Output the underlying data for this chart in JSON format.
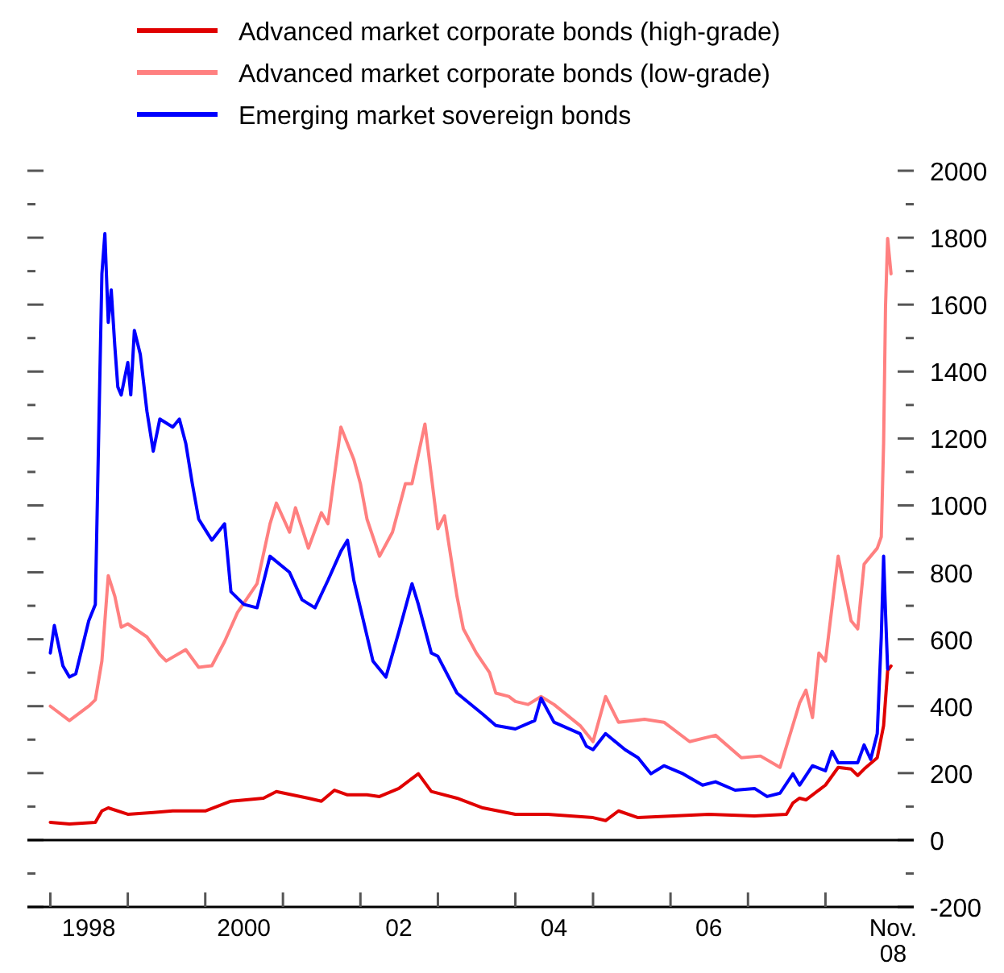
{
  "chart_data": {
    "type": "line",
    "legend": "top",
    "grid": false,
    "line_style": "solid",
    "marker": "none",
    "xlim": [
      "1997-09-15",
      "2009-02-20"
    ],
    "xticks": [
      {
        "value": "1998-01-01",
        "label": null
      },
      {
        "value": "1999-01-01",
        "label": null
      },
      {
        "value": "2000-01-01",
        "label": null
      },
      {
        "value": "2001-01-01",
        "label": null
      },
      {
        "value": "2002-01-01",
        "label": null
      },
      {
        "value": "2003-01-01",
        "label": null
      },
      {
        "value": "2004-01-01",
        "label": null
      },
      {
        "value": "2005-01-01",
        "label": null
      },
      {
        "value": "2006-01-01",
        "label": null
      },
      {
        "value": "2007-01-01",
        "label": null
      },
      {
        "value": "2008-01-01",
        "label": null
      },
      {
        "value": "1998-07-01",
        "label": "1998"
      },
      {
        "value": "2000-07-01",
        "label": "2000"
      },
      {
        "value": "2002-07-01",
        "label": "02"
      },
      {
        "value": "2004-07-01",
        "label": "04"
      },
      {
        "value": "2006-07-01",
        "label": "06"
      },
      {
        "value": "2008-11-15",
        "label": "Nov. 08"
      }
    ],
    "ylim": [
      -200,
      2000
    ],
    "yticks": [
      -200,
      {
        "value": -100,
        "label": null
      },
      0,
      {
        "value": 100,
        "label": null
      },
      200,
      {
        "value": 300,
        "label": null
      },
      400,
      {
        "value": 500,
        "label": null
      },
      600,
      {
        "value": 700,
        "label": null
      },
      800,
      {
        "value": 900,
        "label": null
      },
      1000,
      {
        "value": 1100,
        "label": null
      },
      1200,
      {
        "value": 1300,
        "label": null
      },
      1400,
      {
        "value": 1500,
        "label": null
      },
      1600,
      {
        "value": 1700,
        "label": null
      },
      1800,
      {
        "value": 1900,
        "label": null
      },
      2000
    ],
    "ref_lines": [
      {
        "axis": "y",
        "value": 0,
        "color": "#000000"
      }
    ],
    "series": [
      {
        "name": "Advanced market corporate bonds (high-grade)",
        "color": "#e00000",
        "x": [
          "1998-01",
          "1998-04",
          "1998-08",
          "1998-09",
          "1998-10",
          "1999-01",
          "1999-05",
          "1999-08",
          "2000-01",
          "2000-05",
          "2000-10",
          "2000-12",
          "2001-05",
          "2001-07",
          "2001-09",
          "2001-11",
          "2002-02",
          "2002-04",
          "2002-07",
          "2002-10",
          "2002-12",
          "2003-04",
          "2003-08",
          "2004-01",
          "2004-06",
          "2005-01",
          "2005-03",
          "2005-05",
          "2005-08",
          "2006-07",
          "2007-02",
          "2007-07",
          "2007-08",
          "2007-09",
          "2007-10",
          "2008-01",
          "2008-03",
          "2008-05",
          "2008-06",
          "2008-07",
          "2008-09",
          "2008-10-01",
          "2008-10-20",
          "2008-11-05"
        ],
        "values": [
          53,
          48,
          53,
          87,
          96,
          77,
          82,
          87,
          87,
          116,
          125,
          145,
          125,
          116,
          149,
          135,
          135,
          130,
          154,
          198,
          145,
          125,
          96,
          77,
          77,
          67,
          58,
          87,
          67,
          77,
          72,
          77,
          111,
          125,
          120,
          164,
          217,
          212,
          193,
          212,
          246,
          342,
          506,
          520
        ]
      },
      {
        "name": "Advanced market corporate bonds (low-grade)",
        "color": "#ff8080",
        "x": [
          "1998-01",
          "1998-04",
          "1998-07",
          "1998-08",
          "1998-09",
          "1998-10",
          "1998-11",
          "1998-12",
          "1999-01",
          "1999-04",
          "1999-06",
          "1999-07",
          "1999-10",
          "1999-12",
          "2000-02",
          "2000-04",
          "2000-06",
          "2000-09",
          "2000-11",
          "2000-12",
          "2001-02",
          "2001-03",
          "2001-05",
          "2001-07",
          "2001-08",
          "2001-10",
          "2001-12",
          "2002-01",
          "2002-02",
          "2002-04",
          "2002-06",
          "2002-08",
          "2002-09",
          "2002-11",
          "2002-12",
          "2003-01",
          "2003-02",
          "2003-04",
          "2003-05",
          "2003-07",
          "2003-09",
          "2003-10",
          "2003-12",
          "2004-01",
          "2004-03",
          "2004-05",
          "2004-07",
          "2004-11",
          "2005-01",
          "2005-03",
          "2005-05",
          "2005-09",
          "2005-12",
          "2006-04",
          "2006-08",
          "2006-12",
          "2007-03",
          "2007-06",
          "2007-09",
          "2007-10",
          "2007-11",
          "2007-12",
          "2008-01",
          "2008-03",
          "2008-05",
          "2008-06",
          "2008-07",
          "2008-09",
          "2008-09-20",
          "2008-10-01",
          "2008-10-10",
          "2008-10-20",
          "2008-11-05"
        ],
        "values": [
          400,
          357,
          400,
          419,
          535,
          790,
          728,
          636,
          646,
          607,
          554,
          535,
          569,
          516,
          521,
          593,
          680,
          766,
          945,
          1007,
          920,
          993,
          872,
          978,
          945,
          1234,
          1137,
          1065,
          959,
          848,
          920,
          1065,
          1065,
          1243,
          1089,
          930,
          969,
          728,
          631,
          559,
          501,
          439,
          429,
          414,
          405,
          429,
          405,
          342,
          294,
          429,
          352,
          361,
          352,
          294,
          313,
          246,
          251,
          217,
          409,
          448,
          366,
          559,
          535,
          848,
          655,
          631,
          824,
          872,
          906,
          1186,
          1595,
          1798,
          1692
        ]
      },
      {
        "name": "Emerging market sovereign bonds",
        "color": "#0000ff",
        "x": [
          "1998-01",
          "1998-01-20",
          "1998-03",
          "1998-04",
          "1998-05",
          "1998-07",
          "1998-08",
          "1998-09-01",
          "1998-09-15",
          "1998-10",
          "1998-10-15",
          "1998-11",
          "1998-11-15",
          "1998-12",
          "1999-01",
          "1999-01-15",
          "1999-02",
          "1999-03",
          "1999-04",
          "1999-05",
          "1999-06",
          "1999-08",
          "1999-09",
          "1999-10",
          "1999-11",
          "1999-12",
          "2000-02",
          "2000-04",
          "2000-05",
          "2000-07",
          "2000-09",
          "2000-11",
          "2001-02",
          "2001-04",
          "2001-06",
          "2001-08",
          "2001-10",
          "2001-11",
          "2001-12",
          "2002-03",
          "2002-05",
          "2002-07",
          "2002-09",
          "2002-10",
          "2002-12",
          "2003-01",
          "2003-04",
          "2003-08",
          "2003-10",
          "2004-01",
          "2004-04",
          "2004-05",
          "2004-07",
          "2004-11",
          "2004-12",
          "2005-01",
          "2005-03",
          "2005-06",
          "2005-08",
          "2005-10",
          "2005-12",
          "2006-03",
          "2006-06",
          "2006-08",
          "2006-11",
          "2007-02",
          "2007-04",
          "2007-06",
          "2007-08",
          "2007-09",
          "2007-11",
          "2008-01",
          "2008-02",
          "2008-03",
          "2008-06",
          "2008-07",
          "2008-08",
          "2008-09-01",
          "2008-09-20",
          "2008-10-01",
          "2008-10-10",
          "2008-10-20"
        ],
        "values": [
          559,
          641,
          521,
          487,
          497,
          655,
          704,
          1692,
          1812,
          1547,
          1644,
          1475,
          1354,
          1330,
          1427,
          1330,
          1523,
          1451,
          1282,
          1162,
          1258,
          1234,
          1258,
          1186,
          1065,
          959,
          896,
          945,
          742,
          704,
          694,
          848,
          800,
          718,
          694,
          776,
          863,
          896,
          776,
          535,
          487,
          622,
          766,
          704,
          559,
          549,
          439,
          376,
          342,
          332,
          357,
          424,
          352,
          318,
          280,
          270,
          318,
          270,
          246,
          198,
          222,
          198,
          164,
          174,
          149,
          154,
          130,
          140,
          198,
          164,
          222,
          207,
          265,
          231,
          231,
          284,
          241,
          318,
          607,
          848,
          680,
          511
        ]
      }
    ]
  }
}
